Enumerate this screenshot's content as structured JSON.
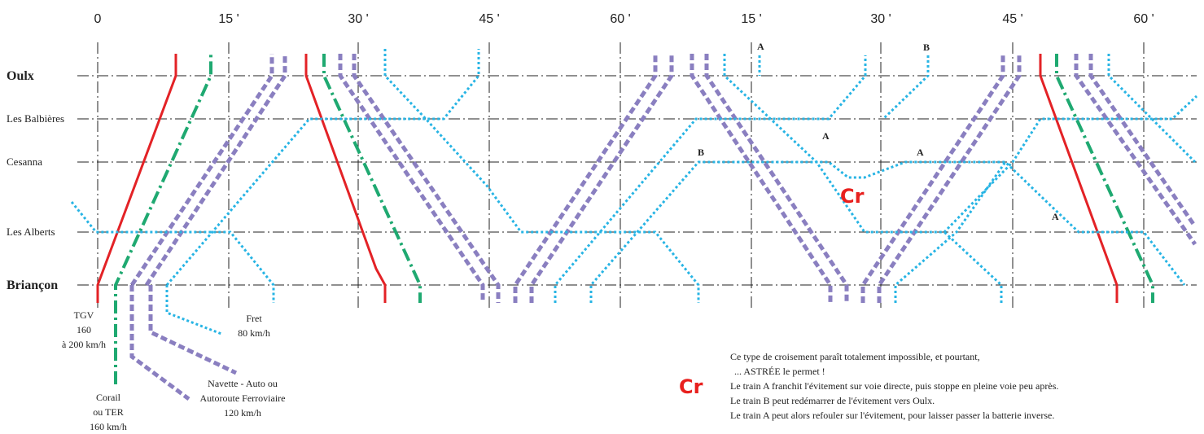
{
  "time_ticks": [
    "0",
    "15 '",
    "30 '",
    "45 '",
    "60 '",
    "15 '",
    "30 '",
    "45 '",
    "60 '"
  ],
  "stations": [
    {
      "name": "Oulx",
      "bold": true
    },
    {
      "name": "Les Balbières",
      "bold": false
    },
    {
      "name": "Cesanna",
      "bold": false
    },
    {
      "name": "Les Alberts",
      "bold": false
    },
    {
      "name": "Briançon",
      "bold": true
    }
  ],
  "legend": {
    "tgv": [
      "TGV",
      "160",
      "à 200 km/h"
    ],
    "ter": [
      "Corail",
      "ou TER",
      "160 km/h"
    ],
    "navette": [
      "Navette - Auto ou",
      "Autoroute Ferroviaire",
      "120 km/h"
    ],
    "fret": [
      "Fret",
      "80 km/h"
    ]
  },
  "markers": {
    "a": "A",
    "b": "B",
    "cr": "Cr"
  },
  "note": {
    "cr": "Cr",
    "lines": [
      "Ce type de croisement paraît totalement impossible, et pourtant,",
      "... ASTRÉE le permet  !",
      "Le train A franchit l'évitement sur voie directe, puis stoppe en pleine voie peu après.",
      "Le train B peut redémarrer de l'évitement vers Oulx.",
      "Le train A peut alors refouler sur l'évitement, pour laisser passer la batterie inverse."
    ]
  },
  "colors": {
    "tgv": "#e32226",
    "ter": "#1fa971",
    "navette": "#8a7fc0",
    "fret": "#27b4e4"
  }
}
